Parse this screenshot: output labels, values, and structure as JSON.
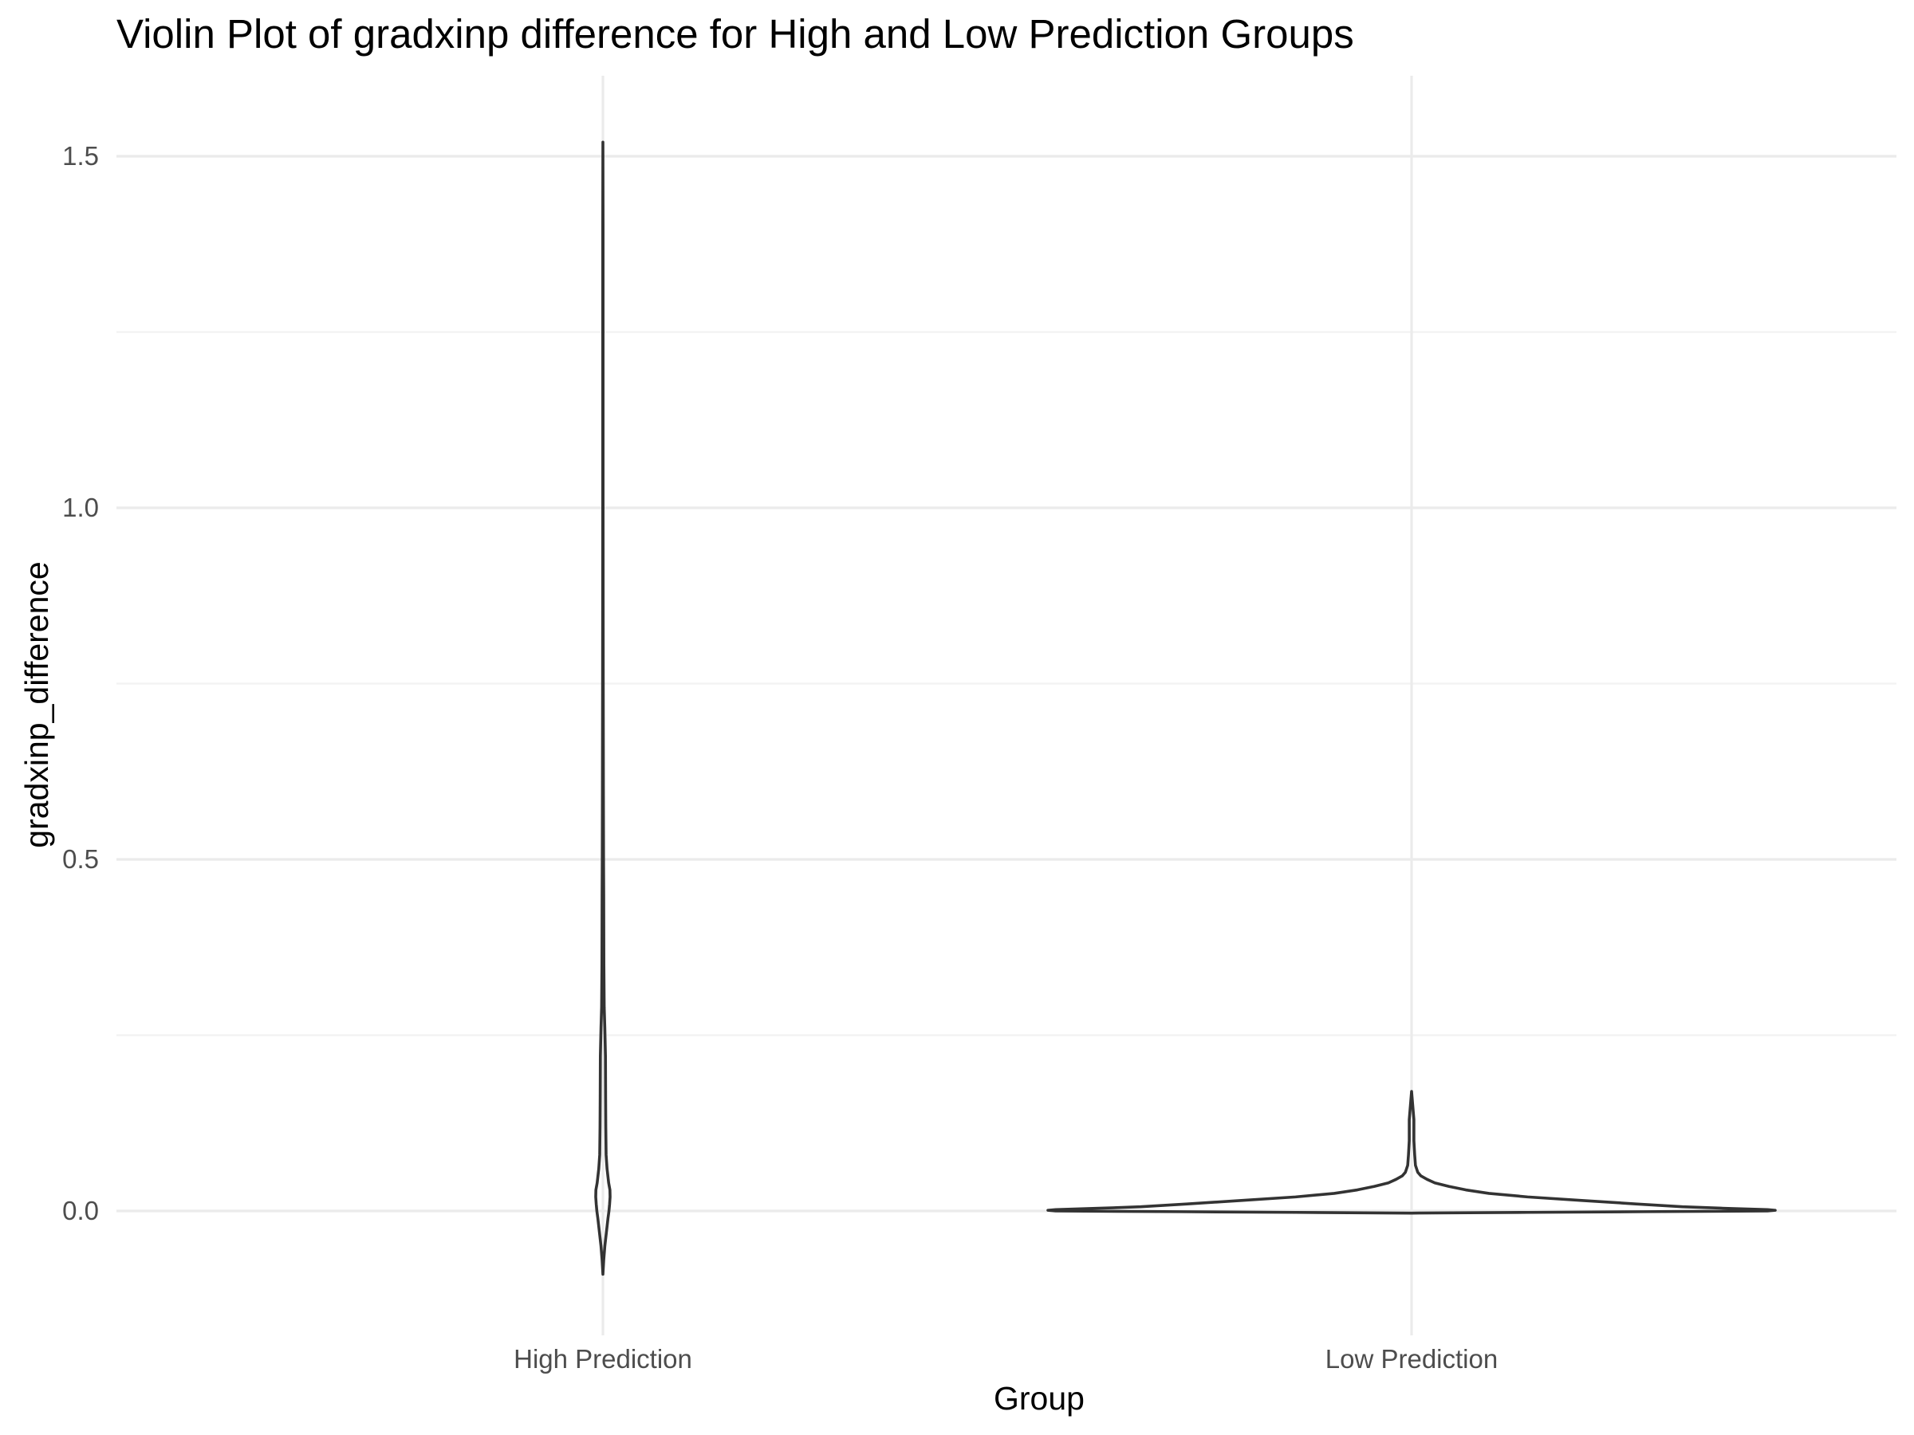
{
  "chart_data": {
    "type": "violin",
    "title": "Violin Plot of gradxinp difference for High and Low Prediction Groups",
    "xlabel": "Group",
    "ylabel": "gradxinp_difference",
    "categories": [
      "High Prediction",
      "Low Prediction"
    ],
    "ylim": [
      -0.13,
      1.6
    ],
    "yticks": [
      0.0,
      0.5,
      1.0,
      1.5
    ],
    "ytick_labels": [
      "0.0",
      "0.5",
      "1.0",
      "1.5"
    ],
    "grid": true,
    "legend": "none",
    "colors": {
      "violin_outline": "#333333",
      "grid_major": "#ebebeb",
      "grid_minor": "#f2f2f2",
      "title": "#000000",
      "tick_text": "#4d4d4d"
    },
    "series": [
      {
        "category": "High Prediction",
        "min": -0.09,
        "max": 1.52,
        "density_profile": [
          [
            -0.09,
            0.0
          ],
          [
            -0.07,
            0.005
          ],
          [
            -0.05,
            0.012
          ],
          [
            -0.03,
            0.022
          ],
          [
            -0.01,
            0.032
          ],
          [
            0.0,
            0.038
          ],
          [
            0.01,
            0.042
          ],
          [
            0.02,
            0.045
          ],
          [
            0.03,
            0.044
          ],
          [
            0.04,
            0.036
          ],
          [
            0.06,
            0.026
          ],
          [
            0.08,
            0.02
          ],
          [
            0.12,
            0.018
          ],
          [
            0.16,
            0.017
          ],
          [
            0.22,
            0.016
          ],
          [
            0.26,
            0.012
          ],
          [
            0.29,
            0.008
          ],
          [
            0.35,
            0.006
          ],
          [
            0.45,
            0.005
          ],
          [
            0.5,
            0.004
          ],
          [
            0.6,
            0.003
          ],
          [
            0.75,
            0.002
          ],
          [
            0.85,
            0.0015
          ],
          [
            1.0,
            0.001
          ],
          [
            1.2,
            0.001
          ],
          [
            1.4,
            0.001
          ],
          [
            1.52,
            0.0
          ]
        ]
      },
      {
        "category": "Low Prediction",
        "min": -0.003,
        "max": 0.17,
        "density_profile": [
          [
            -0.003,
            0.0
          ],
          [
            -0.002,
            0.15
          ],
          [
            -0.001,
            0.3
          ],
          [
            0.0,
            0.46
          ],
          [
            0.001,
            0.47
          ],
          [
            0.002,
            0.46
          ],
          [
            0.004,
            0.4
          ],
          [
            0.006,
            0.35
          ],
          [
            0.01,
            0.29
          ],
          [
            0.015,
            0.22
          ],
          [
            0.02,
            0.15
          ],
          [
            0.025,
            0.1
          ],
          [
            0.03,
            0.07
          ],
          [
            0.035,
            0.048
          ],
          [
            0.04,
            0.03
          ],
          [
            0.045,
            0.02
          ],
          [
            0.05,
            0.012
          ],
          [
            0.055,
            0.008
          ],
          [
            0.065,
            0.005
          ],
          [
            0.08,
            0.004
          ],
          [
            0.1,
            0.003
          ],
          [
            0.13,
            0.003
          ],
          [
            0.17,
            0.0
          ]
        ]
      }
    ]
  }
}
